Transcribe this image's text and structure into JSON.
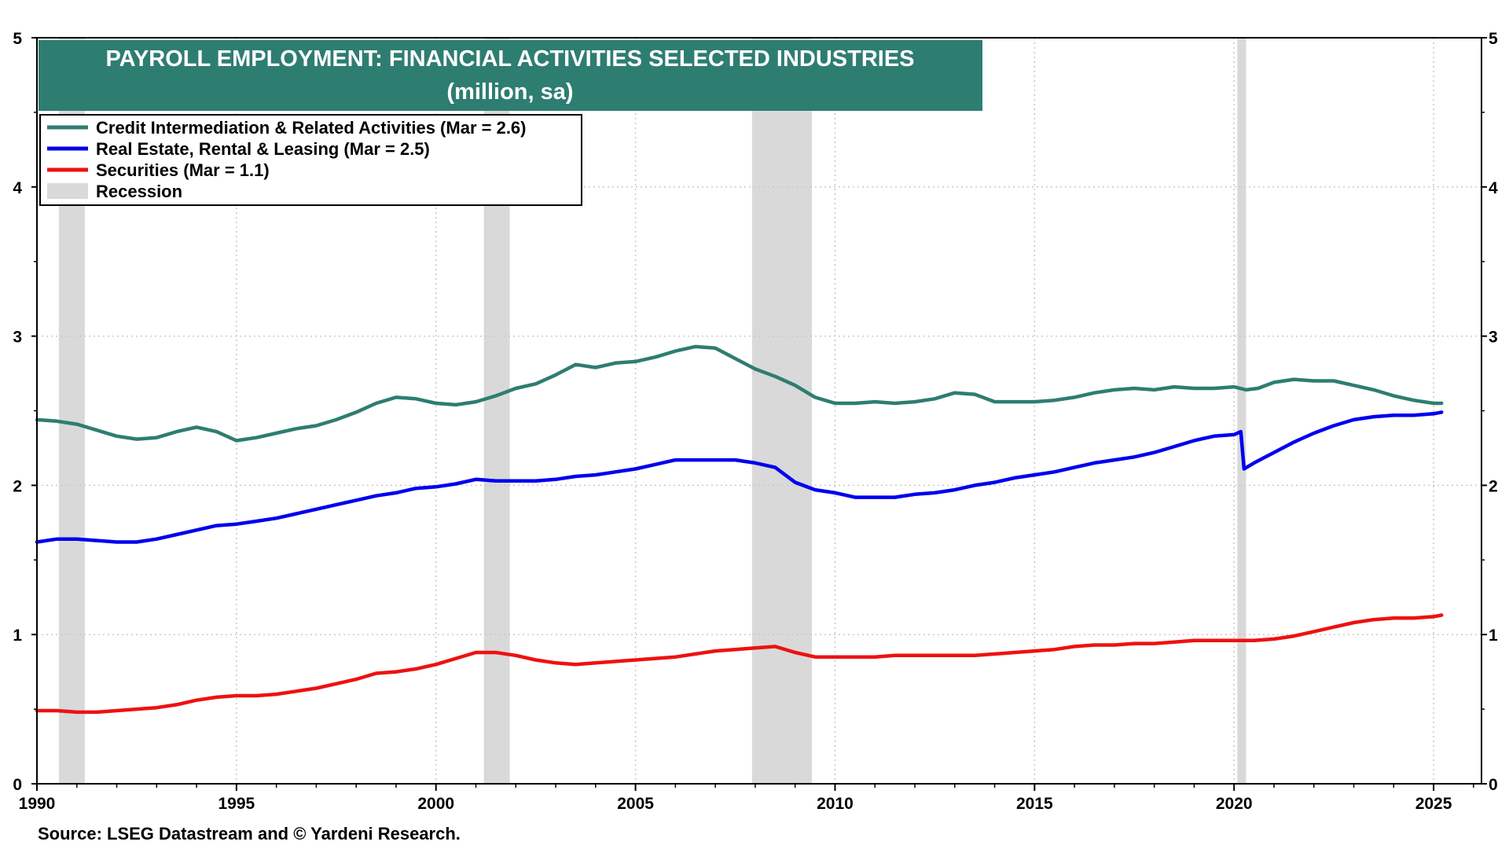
{
  "chart_data": {
    "type": "line",
    "title": "PAYROLL EMPLOYMENT:  FINANCIAL ACTIVITIES SELECTED INDUSTRIES",
    "subtitle": "(million, sa)",
    "xlabel": "",
    "ylabel": "",
    "xlim": [
      1990,
      2026.2
    ],
    "ylim": [
      0,
      5
    ],
    "x_ticks": [
      "1990",
      "1995",
      "2000",
      "2005",
      "2010",
      "2015",
      "2020",
      "2025"
    ],
    "y_ticks_left": [
      "0",
      "1",
      "2",
      "3",
      "4",
      "5"
    ],
    "y_ticks_right": [
      "0",
      "1",
      "2",
      "3",
      "4",
      "5"
    ],
    "grid": true,
    "legend_position": "top-left",
    "source": "Source: LSEG Datastream and © Yardeni Research.",
    "colors": {
      "title_bg": "#2e7d71",
      "credit": "#2e7d71",
      "realestate": "#0000ee",
      "securities": "#ee1111",
      "recession": "#d9d9d9"
    },
    "recessions": [
      {
        "start": 1990.55,
        "end": 1991.2
      },
      {
        "start": 2001.2,
        "end": 2001.85
      },
      {
        "start": 2007.92,
        "end": 2009.42
      },
      {
        "start": 2020.08,
        "end": 2020.3
      }
    ],
    "legend": [
      {
        "key": "credit",
        "label": "Credit Intermediation & Related Activities (Mar = 2.6)"
      },
      {
        "key": "realestate",
        "label": "Real Estate, Rental & Leasing (Mar = 2.5)"
      },
      {
        "key": "securities",
        "label": "Securities (Mar = 1.1)"
      },
      {
        "key": "recession",
        "label": "Recession"
      }
    ],
    "series": [
      {
        "key": "credit",
        "name": "Credit Intermediation & Related Activities (Mar = 2.6)",
        "x": [
          1990.0,
          1990.5,
          1991.0,
          1991.5,
          1992.0,
          1992.5,
          1993.0,
          1993.5,
          1994.0,
          1994.5,
          1995.0,
          1995.5,
          1996.0,
          1996.5,
          1997.0,
          1997.5,
          1998.0,
          1998.5,
          1999.0,
          1999.5,
          2000.0,
          2000.5,
          2001.0,
          2001.5,
          2002.0,
          2002.5,
          2003.0,
          2003.5,
          2004.0,
          2004.5,
          2005.0,
          2005.5,
          2006.0,
          2006.5,
          2007.0,
          2007.5,
          2008.0,
          2008.5,
          2009.0,
          2009.5,
          2010.0,
          2010.5,
          2011.0,
          2011.5,
          2012.0,
          2012.5,
          2013.0,
          2013.5,
          2014.0,
          2014.5,
          2015.0,
          2015.5,
          2016.0,
          2016.5,
          2017.0,
          2017.5,
          2018.0,
          2018.5,
          2019.0,
          2019.5,
          2020.0,
          2020.3,
          2020.6,
          2021.0,
          2021.5,
          2022.0,
          2022.5,
          2023.0,
          2023.5,
          2024.0,
          2024.5,
          2025.0,
          2025.2
        ],
        "values": [
          2.44,
          2.43,
          2.41,
          2.37,
          2.33,
          2.31,
          2.32,
          2.36,
          2.39,
          2.36,
          2.3,
          2.32,
          2.35,
          2.38,
          2.4,
          2.44,
          2.49,
          2.55,
          2.59,
          2.58,
          2.55,
          2.54,
          2.56,
          2.6,
          2.65,
          2.68,
          2.74,
          2.81,
          2.79,
          2.82,
          2.83,
          2.86,
          2.9,
          2.93,
          2.92,
          2.85,
          2.78,
          2.73,
          2.67,
          2.59,
          2.55,
          2.55,
          2.56,
          2.55,
          2.56,
          2.58,
          2.62,
          2.61,
          2.56,
          2.56,
          2.56,
          2.57,
          2.59,
          2.62,
          2.64,
          2.65,
          2.64,
          2.66,
          2.65,
          2.65,
          2.66,
          2.64,
          2.65,
          2.69,
          2.71,
          2.7,
          2.7,
          2.67,
          2.64,
          2.6,
          2.57,
          2.55,
          2.55
        ]
      },
      {
        "key": "realestate",
        "name": "Real Estate, Rental & Leasing (Mar = 2.5)",
        "x": [
          1990.0,
          1990.5,
          1991.0,
          1991.5,
          1992.0,
          1992.5,
          1993.0,
          1993.5,
          1994.0,
          1994.5,
          1995.0,
          1995.5,
          1996.0,
          1996.5,
          1997.0,
          1997.5,
          1998.0,
          1998.5,
          1999.0,
          1999.5,
          2000.0,
          2000.5,
          2001.0,
          2001.5,
          2002.0,
          2002.5,
          2003.0,
          2003.5,
          2004.0,
          2004.5,
          2005.0,
          2005.5,
          2006.0,
          2006.5,
          2007.0,
          2007.5,
          2008.0,
          2008.5,
          2009.0,
          2009.5,
          2010.0,
          2010.5,
          2011.0,
          2011.5,
          2012.0,
          2012.5,
          2013.0,
          2013.5,
          2014.0,
          2014.5,
          2015.0,
          2015.5,
          2016.0,
          2016.5,
          2017.0,
          2017.5,
          2018.0,
          2018.5,
          2019.0,
          2019.5,
          2020.0,
          2020.17,
          2020.25,
          2020.5,
          2021.0,
          2021.5,
          2022.0,
          2022.5,
          2023.0,
          2023.5,
          2024.0,
          2024.5,
          2025.0,
          2025.2
        ],
        "values": [
          1.62,
          1.64,
          1.64,
          1.63,
          1.62,
          1.62,
          1.64,
          1.67,
          1.7,
          1.73,
          1.74,
          1.76,
          1.78,
          1.81,
          1.84,
          1.87,
          1.9,
          1.93,
          1.95,
          1.98,
          1.99,
          2.01,
          2.04,
          2.03,
          2.03,
          2.03,
          2.04,
          2.06,
          2.07,
          2.09,
          2.11,
          2.14,
          2.17,
          2.17,
          2.17,
          2.17,
          2.15,
          2.12,
          2.02,
          1.97,
          1.95,
          1.92,
          1.92,
          1.92,
          1.94,
          1.95,
          1.97,
          2.0,
          2.02,
          2.05,
          2.07,
          2.09,
          2.12,
          2.15,
          2.17,
          2.19,
          2.22,
          2.26,
          2.3,
          2.33,
          2.34,
          2.36,
          2.11,
          2.15,
          2.22,
          2.29,
          2.35,
          2.4,
          2.44,
          2.46,
          2.47,
          2.47,
          2.48,
          2.49
        ]
      },
      {
        "key": "securities",
        "name": "Securities (Mar = 1.1)",
        "x": [
          1990.0,
          1990.5,
          1991.0,
          1991.5,
          1992.0,
          1992.5,
          1993.0,
          1993.5,
          1994.0,
          1994.5,
          1995.0,
          1995.5,
          1996.0,
          1996.5,
          1997.0,
          1997.5,
          1998.0,
          1998.5,
          1999.0,
          1999.5,
          2000.0,
          2000.5,
          2001.0,
          2001.5,
          2002.0,
          2002.5,
          2003.0,
          2003.5,
          2004.0,
          2004.5,
          2005.0,
          2005.5,
          2006.0,
          2006.5,
          2007.0,
          2007.5,
          2008.0,
          2008.5,
          2009.0,
          2009.5,
          2010.0,
          2010.5,
          2011.0,
          2011.5,
          2012.0,
          2012.5,
          2013.0,
          2013.5,
          2014.0,
          2014.5,
          2015.0,
          2015.5,
          2016.0,
          2016.5,
          2017.0,
          2017.5,
          2018.0,
          2018.5,
          2019.0,
          2019.5,
          2020.0,
          2020.5,
          2021.0,
          2021.5,
          2022.0,
          2022.5,
          2023.0,
          2023.5,
          2024.0,
          2024.5,
          2025.0,
          2025.2
        ],
        "values": [
          0.49,
          0.49,
          0.48,
          0.48,
          0.49,
          0.5,
          0.51,
          0.53,
          0.56,
          0.58,
          0.59,
          0.59,
          0.6,
          0.62,
          0.64,
          0.67,
          0.7,
          0.74,
          0.75,
          0.77,
          0.8,
          0.84,
          0.88,
          0.88,
          0.86,
          0.83,
          0.81,
          0.8,
          0.81,
          0.82,
          0.83,
          0.84,
          0.85,
          0.87,
          0.89,
          0.9,
          0.91,
          0.92,
          0.88,
          0.85,
          0.85,
          0.85,
          0.85,
          0.86,
          0.86,
          0.86,
          0.86,
          0.86,
          0.87,
          0.88,
          0.89,
          0.9,
          0.92,
          0.93,
          0.93,
          0.94,
          0.94,
          0.95,
          0.96,
          0.96,
          0.96,
          0.96,
          0.97,
          0.99,
          1.02,
          1.05,
          1.08,
          1.1,
          1.11,
          1.11,
          1.12,
          1.13
        ]
      }
    ]
  }
}
